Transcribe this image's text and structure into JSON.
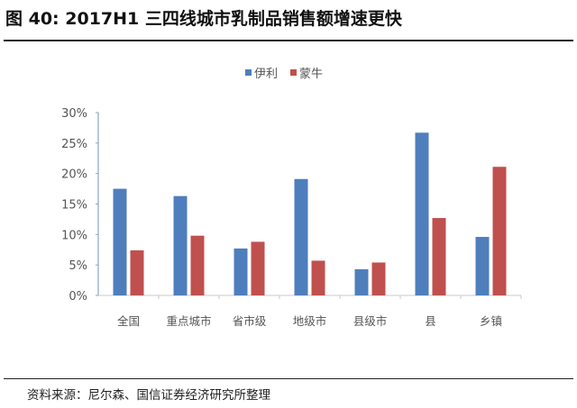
{
  "header": {
    "title": "图 40:  2017H1 三四线城市乳制品销售额增速更快"
  },
  "footer": {
    "source": "资料来源：尼尔森、国信证券经济研究所整理"
  },
  "chart_data": {
    "type": "bar",
    "title": "",
    "xlabel": "",
    "ylabel": "",
    "categories": [
      "全国",
      "重点城市",
      "省市级",
      "地级市",
      "县级市",
      "县",
      "乡镇"
    ],
    "series": [
      {
        "name": "伊利",
        "color": "#4F7EBD",
        "values": [
          17.5,
          16.3,
          7.7,
          19.1,
          4.3,
          26.7,
          9.6
        ]
      },
      {
        "name": "蒙牛",
        "color": "#C0504D",
        "values": [
          7.4,
          9.8,
          8.8,
          5.7,
          5.4,
          12.7,
          21.1
        ]
      }
    ],
    "ylim": [
      0,
      30
    ],
    "yticks": [
      0,
      5,
      10,
      15,
      20,
      25,
      30
    ],
    "ytick_labels": [
      "0%",
      "5%",
      "10%",
      "15%",
      "20%",
      "25%",
      "30%"
    ],
    "legend_position": "top-center",
    "grid": false
  }
}
